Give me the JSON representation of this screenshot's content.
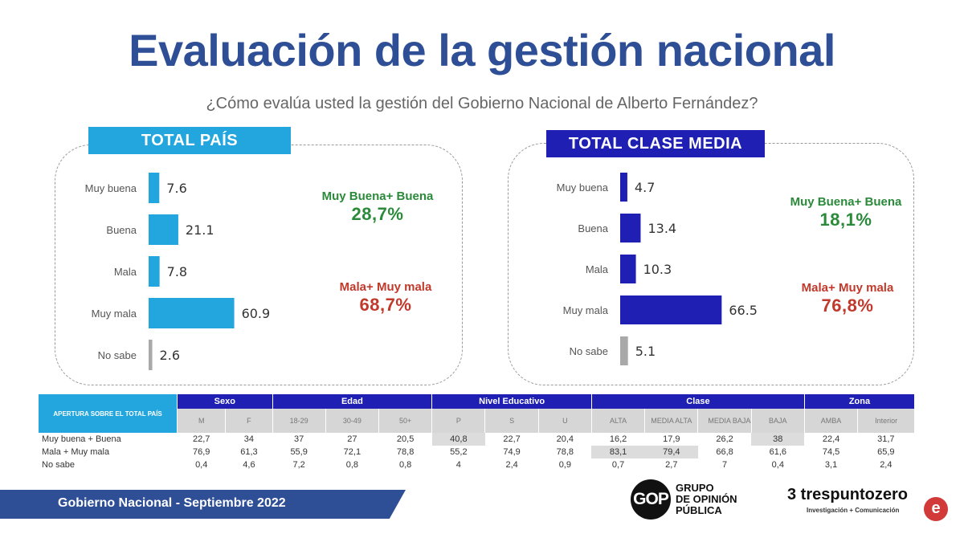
{
  "title": "Evaluación de la gestión nacional",
  "subtitle": "¿Cómo evalúa usted la gestión del Gobierno Nacional de Alberto Fernández?",
  "colors": {
    "title": "#2e4f96",
    "total_pais": "#22a6dd",
    "clase_media": "#1f1fb4",
    "no_sabe": "#a9a9a9",
    "positive": "#2a8a3a",
    "negative": "#c0392b"
  },
  "panels": [
    {
      "header": "TOTAL PAÍS",
      "positive_label": "Muy Buena+ Buena",
      "positive_value": "28,7%",
      "negative_label": "Mala+ Muy mala",
      "negative_value": "68,7%"
    },
    {
      "header": "TOTAL CLASE MEDIA",
      "positive_label": "Muy Buena+ Buena",
      "positive_value": "18,1%",
      "negative_label": "Mala+ Muy mala",
      "negative_value": "76,8%"
    }
  ],
  "chart_data": [
    {
      "type": "bar",
      "orientation": "horizontal",
      "title": "TOTAL PAÍS",
      "categories": [
        "Muy buena",
        "Buena",
        "Mala",
        "Muy mala",
        "No sabe"
      ],
      "values": [
        7.6,
        21.1,
        7.8,
        60.9,
        2.6
      ],
      "value_labels": [
        "7.6",
        "21.1",
        "7.8",
        "60.9",
        "2.6"
      ],
      "xlim": [
        0,
        100
      ]
    },
    {
      "type": "bar",
      "orientation": "horizontal",
      "title": "TOTAL CLASE MEDIA",
      "categories": [
        "Muy buena",
        "Buena",
        "Mala",
        "Muy mala",
        "No sabe"
      ],
      "values": [
        4.7,
        13.4,
        10.3,
        66.5,
        5.1
      ],
      "value_labels": [
        "4.7",
        "13.4",
        "10.3",
        "66.5",
        "5.1"
      ],
      "xlim": [
        0,
        100
      ]
    }
  ],
  "table": {
    "corner_label": "APERTURA SOBRE EL TOTAL PAÍS",
    "groups": [
      "Sexo",
      "Edad",
      "Nivel Educativo",
      "Clase",
      "Zona"
    ],
    "columns": [
      "M",
      "F",
      "18-29",
      "30-49",
      "50+",
      "P",
      "S",
      "U",
      "ALTA",
      "MEDIA ALTA",
      "MEDIA BAJA",
      "BAJA",
      "AMBA",
      "Interior"
    ],
    "rows": [
      {
        "label": "Muy buena + Buena",
        "values": [
          "22,7",
          "34",
          "37",
          "27",
          "20,5",
          "40,8",
          "22,7",
          "20,4",
          "16,2",
          "17,9",
          "26,2",
          "38",
          "22,4",
          "31,7"
        ]
      },
      {
        "label": "Mala + Muy mala",
        "values": [
          "76,9",
          "61,3",
          "55,9",
          "72,1",
          "78,8",
          "55,2",
          "74,9",
          "78,8",
          "83,1",
          "79,4",
          "66,8",
          "61,6",
          "74,5",
          "65,9"
        ]
      },
      {
        "label": "No sabe",
        "values": [
          "0,4",
          "4,6",
          "7,2",
          "0,8",
          "0,8",
          "4",
          "2,4",
          "0,9",
          "0,7",
          "2,7",
          "7",
          "0,4",
          "3,1",
          "2,4"
        ]
      }
    ]
  },
  "footer": {
    "text": "Gobierno Nacional - Septiembre 2022",
    "logo_gop_mark": "GOP",
    "logo_gop_text": "GRUPO\nDE OPINIÓN\nPÚBLICA",
    "logo_tpz_name": "3 trespuntozero",
    "logo_tpz_sub": "Investigación + Comunicación",
    "logo_tpz_mark": "e"
  }
}
